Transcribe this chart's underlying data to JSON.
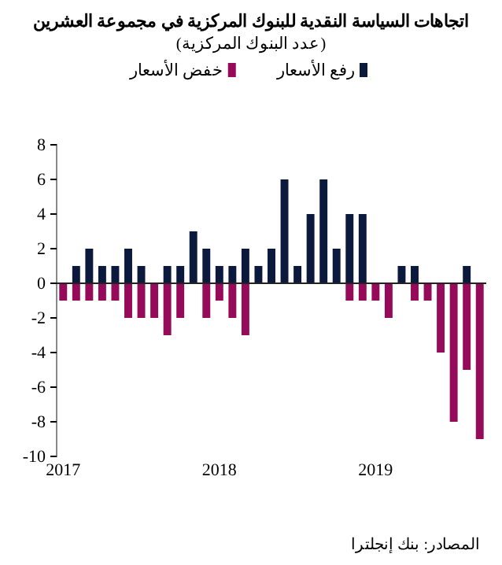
{
  "chart_data": {
    "type": "bar",
    "title": "اتجاهات السياسة النقدية للبنوك المركزية في مجموعة العشرين",
    "subtitle": "(عدد البنوك المركزية)",
    "categories": [
      "2017",
      null,
      null,
      null,
      null,
      null,
      null,
      null,
      null,
      null,
      null,
      null,
      "2018",
      null,
      null,
      null,
      null,
      null,
      null,
      null,
      null,
      null,
      null,
      null,
      "2019",
      null,
      null,
      null,
      null,
      null,
      null,
      null,
      null
    ],
    "series": [
      {
        "name": "رفع الأسعار",
        "color": "#0b1a3c",
        "values": [
          0,
          1,
          2,
          1,
          1,
          2,
          1,
          0,
          1,
          1,
          3,
          2,
          1,
          1,
          2,
          1,
          2,
          6,
          1,
          4,
          6,
          2,
          4,
          4,
          0,
          0,
          1,
          1,
          0,
          0,
          0,
          1,
          0
        ]
      },
      {
        "name": "خفض الأسعار",
        "color": "#960a5a",
        "values": [
          -1,
          -1,
          -1,
          -1,
          -1,
          -2,
          -2,
          -2,
          -3,
          -2,
          0,
          -2,
          -1,
          -2,
          -3,
          0,
          0,
          0,
          0,
          0,
          0,
          0,
          -1,
          -1,
          -1,
          -2,
          0,
          -1,
          -1,
          -4,
          -8,
          -5,
          -9
        ]
      }
    ],
    "ylim": [
      -10,
      8
    ],
    "yticks": [
      -10,
      -8,
      -6,
      -4,
      -2,
      0,
      2,
      4,
      6,
      8
    ],
    "grid": false,
    "ref_lines": [
      {
        "axis": "y",
        "value": 0,
        "color": "#222222"
      }
    ],
    "legend": "top",
    "annotations": [
      "المصادر: بنك إنجلترا"
    ]
  }
}
